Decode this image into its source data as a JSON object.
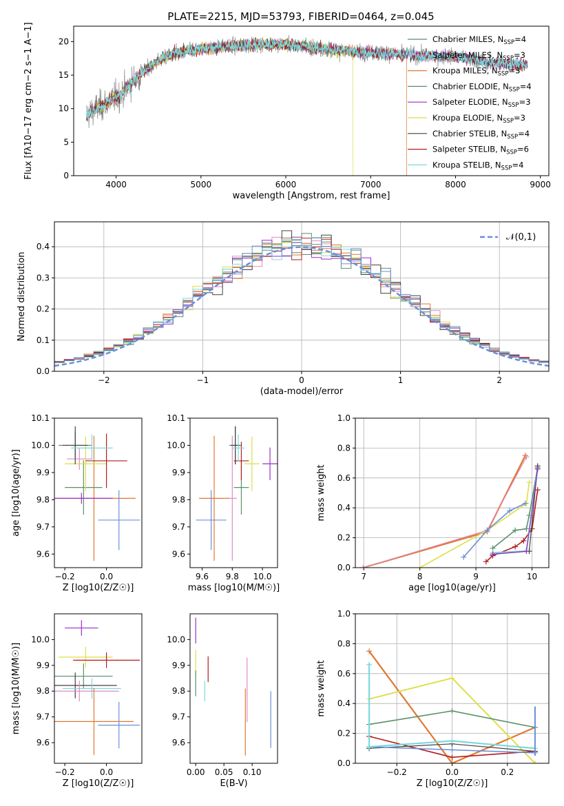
{
  "colors": {
    "Chabrier MILES": "#5a8a6a",
    "Salpeter MILES": "#e08bbf",
    "Kroupa MILES": "#e0782f",
    "Chabrier ELODIE": "#5b8f6b",
    "Salpeter ELODIE": "#9a2fc4",
    "Kroupa ELODIE": "#dede4a",
    "Chabrier STELIB": "#404040",
    "Salpeter STELIB": "#b31b1b",
    "Kroupa STELIB": "#7ed8dc",
    "gaussian": "#6a8fd8",
    "blue": "#6a8fd8"
  },
  "chart_data": [
    {
      "id": "spectrum",
      "type": "line",
      "title": "PLATE=2215, MJD=53793, FIBERID=0464, z=0.045",
      "xlabel": "wavelength [Angstrom, rest frame]",
      "ylabel": "Flux [fλ10−17 erg cm−2 s−1 A−1]",
      "xlim": [
        3500,
        9100
      ],
      "ylim": [
        0,
        22.3
      ],
      "xticks": [
        4000,
        5000,
        6000,
        7000,
        8000,
        9000
      ],
      "yticks": [
        0,
        5,
        10,
        15,
        20
      ],
      "legend": "top-right",
      "legend_entries": [
        {
          "label": "Chabrier MILES, N",
          "sub": "SSP",
          "val": "=4"
        },
        {
          "label": "Salpeter MILES, N",
          "sub": "SSP",
          "val": "=3"
        },
        {
          "label": "Kroupa MILES, N",
          "sub": "SSP",
          "val": "=3"
        },
        {
          "label": "Chabrier ELODIE, N",
          "sub": "SSP",
          "val": "=4"
        },
        {
          "label": "Salpeter ELODIE, N",
          "sub": "SSP",
          "val": "=3"
        },
        {
          "label": "Kroupa ELODIE, N",
          "sub": "SSP",
          "val": "=3"
        },
        {
          "label": "Chabrier STELIB, N",
          "sub": "SSP",
          "val": "=4"
        },
        {
          "label": "Salpeter STELIB, N",
          "sub": "SSP",
          "val": "=6"
        },
        {
          "label": "Kroupa STELIB, N",
          "sub": "SSP",
          "val": "=4"
        }
      ],
      "continuum": [
        [
          3650,
          9
        ],
        [
          3750,
          10
        ],
        [
          3850,
          10.5
        ],
        [
          3950,
          11.5
        ],
        [
          4050,
          12
        ],
        [
          4150,
          13.5
        ],
        [
          4300,
          15.2
        ],
        [
          4500,
          17.2
        ],
        [
          4700,
          18.3
        ],
        [
          5000,
          18.9
        ],
        [
          5300,
          19.3
        ],
        [
          5600,
          19.5
        ],
        [
          6000,
          19.6
        ],
        [
          6400,
          19.0
        ],
        [
          6800,
          18.5
        ],
        [
          7200,
          18.2
        ],
        [
          7600,
          17.9
        ],
        [
          8000,
          17.8
        ],
        [
          8400,
          16.9
        ],
        [
          8850,
          16.5
        ]
      ],
      "drops": [
        {
          "x": 6790,
          "series": "Kroupa ELODIE"
        },
        {
          "x": 7425,
          "series": "Kroupa MILES"
        }
      ]
    },
    {
      "id": "residuals",
      "type": "histogram",
      "xlabel": "(data-model)/error",
      "ylabel": "Normed distribution",
      "xlim": [
        -2.5,
        2.5
      ],
      "ylim": [
        0,
        0.48
      ],
      "xticks": [
        -2,
        -1,
        0,
        1,
        2
      ],
      "yticks": [
        0.0,
        0.1,
        0.2,
        0.3,
        0.4
      ],
      "legend_entry": "𝒩(0,1)",
      "bin_width": 0.1,
      "grid": true
    },
    {
      "id": "age_vs_Z",
      "type": "errorbar",
      "xlabel": "Z [log10(Z/Z☉)]",
      "ylabel": "age  [log10(age/yr)]",
      "xlim": [
        -0.25,
        0.17
      ],
      "ylim": [
        9.55,
        10.1
      ],
      "xticks": [
        -0.2,
        0.0
      ],
      "yticks": [
        9.6,
        9.7,
        9.8,
        9.9,
        10.0,
        10.1
      ],
      "points": [
        {
          "series": "Chabrier MILES",
          "x": -0.15,
          "y": 10.0,
          "xerr": 0.08,
          "yerr": 0.05
        },
        {
          "series": "Salpeter MILES",
          "x": -0.13,
          "y": 9.95,
          "xerr": 0.06,
          "yerr": 0.04
        },
        {
          "series": "Kroupa MILES",
          "x": -0.06,
          "y": 9.805,
          "xerr": 0.2,
          "yerr": 0.23
        },
        {
          "series": "Chabrier ELODIE",
          "x": -0.11,
          "y": 9.845,
          "xerr": 0.09,
          "yerr": 0.1
        },
        {
          "series": "Salpeter ELODIE",
          "x": -0.12,
          "y": 9.805,
          "xerr": 0.15,
          "yerr": 0.02
        },
        {
          "series": "Kroupa ELODIE",
          "x": -0.1,
          "y": 9.932,
          "xerr": 0.1,
          "yerr": 0.1
        },
        {
          "series": "Chabrier STELIB",
          "x": -0.15,
          "y": 10.0,
          "xerr": 0.06,
          "yerr": 0.07
        },
        {
          "series": "Salpeter STELIB",
          "x": 0.0,
          "y": 9.943,
          "xerr": 0.1,
          "yerr": 0.1
        },
        {
          "series": "Kroupa STELIB",
          "x": -0.07,
          "y": 9.99,
          "xerr": 0.1,
          "yerr": 0.05
        },
        {
          "series": "blue",
          "x": 0.06,
          "y": 9.725,
          "xerr": 0.1,
          "yerr": 0.11
        }
      ]
    },
    {
      "id": "age_vs_mass",
      "type": "errorbar",
      "xlabel": "mass [log10(M/M☉)]",
      "ylabel": "",
      "xlim": [
        9.52,
        10.1
      ],
      "ylim": [
        9.55,
        10.1
      ],
      "xticks": [
        9.6,
        9.8,
        10.0
      ],
      "yticks": [
        9.6,
        9.7,
        9.8,
        9.9,
        10.0,
        10.1
      ],
      "points": [
        {
          "series": "Chabrier MILES",
          "x": 9.82,
          "y": 10.0,
          "xerr": 0.04,
          "yerr": 0.07
        },
        {
          "series": "Salpeter MILES",
          "x": 9.8,
          "y": 9.805,
          "xerr": 0.03,
          "yerr": 0.23
        },
        {
          "series": "Kroupa MILES",
          "x": 9.68,
          "y": 9.805,
          "xerr": 0.1,
          "yerr": 0.23
        },
        {
          "series": "Chabrier ELODIE",
          "x": 9.86,
          "y": 9.845,
          "xerr": 0.05,
          "yerr": 0.1
        },
        {
          "series": "Salpeter ELODIE",
          "x": 10.05,
          "y": 9.932,
          "xerr": 0.05,
          "yerr": 0.06
        },
        {
          "series": "Kroupa ELODIE",
          "x": 9.93,
          "y": 9.932,
          "xerr": 0.05,
          "yerr": 0.1
        },
        {
          "series": "Chabrier STELIB",
          "x": 9.82,
          "y": 10.0,
          "xerr": 0.03,
          "yerr": 0.07
        },
        {
          "series": "Salpeter STELIB",
          "x": 9.86,
          "y": 9.943,
          "xerr": 0.05,
          "yerr": 0.07
        },
        {
          "series": "Kroupa STELIB",
          "x": 9.84,
          "y": 9.99,
          "xerr": 0.04,
          "yerr": 0.05
        },
        {
          "series": "blue",
          "x": 9.66,
          "y": 9.725,
          "xerr": 0.1,
          "yerr": 0.11
        }
      ]
    },
    {
      "id": "weight_vs_age",
      "type": "line",
      "xlabel": "age  [log10(age/yr)]",
      "ylabel": "mass weight",
      "xlim": [
        6.85,
        10.3
      ],
      "ylim": [
        0,
        1.0
      ],
      "xticks": [
        7,
        8,
        9,
        10
      ],
      "yticks": [
        0.0,
        0.2,
        0.4,
        0.6,
        0.8,
        1.0
      ],
      "grid": true,
      "series": [
        {
          "name": "Kroupa MILES",
          "width": 2.2,
          "points": [
            [
              6.99,
              0.0
            ],
            [
              9.2,
              0.24
            ],
            [
              9.88,
              0.75
            ]
          ]
        },
        {
          "name": "Salpeter MILES",
          "width": 1.2,
          "points": [
            [
              6.99,
              0.0
            ],
            [
              9.2,
              0.25
            ],
            [
              9.9,
              0.74
            ]
          ]
        },
        {
          "name": "Kroupa ELODIE",
          "width": 1.6,
          "points": [
            [
              8.0,
              0.0
            ],
            [
              9.2,
              0.25
            ],
            [
              9.9,
              0.43
            ],
            [
              9.95,
              0.57
            ]
          ]
        },
        {
          "name": "blue",
          "width": 1.6,
          "points": [
            [
              8.78,
              0.07
            ],
            [
              9.2,
              0.25
            ],
            [
              9.6,
              0.38
            ],
            [
              9.88,
              0.43
            ]
          ]
        },
        {
          "name": "Chabrier ELODIE",
          "width": 1.6,
          "points": [
            [
              9.3,
              0.13
            ],
            [
              9.7,
              0.25
            ],
            [
              9.9,
              0.26
            ],
            [
              9.95,
              0.35
            ],
            [
              10.1,
              0.67
            ]
          ]
        },
        {
          "name": "Salpeter STELIB",
          "width": 1.6,
          "points": [
            [
              9.18,
              0.04
            ],
            [
              9.3,
              0.08
            ],
            [
              9.7,
              0.14
            ],
            [
              9.85,
              0.18
            ],
            [
              10.0,
              0.26
            ],
            [
              10.1,
              0.52
            ]
          ]
        },
        {
          "name": "Kroupa STELIB",
          "width": 2.2,
          "points": [
            [
              9.3,
              0.1
            ],
            [
              9.9,
              0.11
            ],
            [
              10.1,
              0.66
            ]
          ]
        },
        {
          "name": "Chabrier STELIB",
          "width": 1.2,
          "points": [
            [
              9.3,
              0.09
            ],
            [
              9.95,
              0.11
            ],
            [
              10.1,
              0.68
            ]
          ]
        },
        {
          "name": "Salpeter ELODIE",
          "width": 1.2,
          "points": [
            [
              9.3,
              0.09
            ],
            [
              9.9,
              0.11
            ],
            [
              10.1,
              0.66
            ]
          ]
        }
      ]
    },
    {
      "id": "mass_vs_Z",
      "type": "errorbar",
      "xlabel": "Z [log10(Z/Z☉)]",
      "ylabel": "mass [log10(M/M☉)]",
      "xlim": [
        -0.25,
        0.17
      ],
      "ylim": [
        9.52,
        10.1
      ],
      "xticks": [
        -0.2,
        0.0
      ],
      "yticks": [
        9.6,
        9.7,
        9.8,
        9.9,
        10.0
      ],
      "points": [
        {
          "series": "Salpeter ELODIE",
          "x": -0.12,
          "y": 10.045,
          "xerr": 0.08,
          "yerr": 0.03
        },
        {
          "series": "Kroupa ELODIE",
          "x": -0.1,
          "y": 9.932,
          "xerr": 0.13,
          "yerr": 0.04
        },
        {
          "series": "Salpeter STELIB",
          "x": 0.0,
          "y": 9.92,
          "xerr": 0.16,
          "yerr": 0.03
        },
        {
          "series": "Chabrier ELODIE",
          "x": -0.11,
          "y": 9.858,
          "xerr": 0.14,
          "yerr": 0.05
        },
        {
          "series": "Chabrier STELIB",
          "x": -0.15,
          "y": 9.822,
          "xerr": 0.2,
          "yerr": 0.05
        },
        {
          "series": "Kroupa STELIB",
          "x": -0.07,
          "y": 9.81,
          "xerr": 0.14,
          "yerr": 0.04
        },
        {
          "series": "Salpeter MILES",
          "x": -0.13,
          "y": 9.8,
          "xerr": 0.19,
          "yerr": 0.04
        },
        {
          "series": "Kroupa MILES",
          "x": -0.06,
          "y": 9.682,
          "xerr": 0.19,
          "yerr": 0.13
        },
        {
          "series": "blue",
          "x": 0.06,
          "y": 9.668,
          "xerr": 0.1,
          "yerr": 0.09
        }
      ]
    },
    {
      "id": "mass_vs_ebv",
      "type": "errorbar",
      "xlabel": "E(B-V)",
      "ylabel": "",
      "xlim": [
        -0.01,
        0.145
      ],
      "ylim": [
        9.52,
        10.1
      ],
      "xticks": [
        0.0,
        0.05,
        0.1
      ],
      "xticklabels": [
        "0.00",
        "0.05",
        "0.10"
      ],
      "yticks": [
        9.6,
        9.7,
        9.8,
        9.9,
        10.0
      ],
      "points": [
        {
          "series": "Salpeter ELODIE",
          "x": 0.0,
          "y": 10.035,
          "xerr": 0,
          "yerr": 0.05
        },
        {
          "series": "Kroupa ELODIE",
          "x": 0.0,
          "y": 9.91,
          "xerr": 0,
          "yerr": 0.05
        },
        {
          "series": "Chabrier ELODIE",
          "x": 0.0,
          "y": 9.83,
          "xerr": 0,
          "yerr": 0.05
        },
        {
          "series": "Salpeter STELIB",
          "x": 0.022,
          "y": 9.885,
          "xerr": 0,
          "yerr": 0.05
        },
        {
          "series": "Kroupa STELIB",
          "x": 0.016,
          "y": 9.8,
          "xerr": 0,
          "yerr": 0.04
        },
        {
          "series": "Salpeter MILES",
          "x": 0.091,
          "y": 9.805,
          "xerr": 0,
          "yerr": 0.125
        },
        {
          "series": "Kroupa MILES",
          "x": 0.088,
          "y": 9.68,
          "xerr": 0,
          "yerr": 0.13
        },
        {
          "series": "blue",
          "x": 0.133,
          "y": 9.69,
          "xerr": 0,
          "yerr": 0.11
        }
      ]
    },
    {
      "id": "weight_vs_Z",
      "type": "line",
      "xlabel": "Z [log10(Z/Z☉)]",
      "ylabel": "mass weight",
      "xlim": [
        -0.35,
        0.35
      ],
      "ylim": [
        0,
        1.0
      ],
      "xticks": [
        -0.2,
        0.0,
        0.2
      ],
      "yticks": [
        0.0,
        0.2,
        0.4,
        0.6,
        0.8,
        1.0
      ],
      "grid": true,
      "series": [
        {
          "name": "Kroupa MILES",
          "width": 2.2,
          "points": [
            [
              -0.3,
              0.75
            ],
            [
              0.0,
              0.0
            ],
            [
              0.3,
              0.24
            ]
          ]
        },
        {
          "name": "Kroupa ELODIE",
          "width": 2.0,
          "points": [
            [
              -0.3,
              0.43
            ],
            [
              0.0,
              0.57
            ],
            [
              0.3,
              0.0
            ]
          ]
        },
        {
          "name": "Chabrier ELODIE",
          "width": 1.6,
          "points": [
            [
              -0.3,
              0.26
            ],
            [
              0.0,
              0.35
            ],
            [
              0.3,
              0.24
            ]
          ]
        },
        {
          "name": "Salpeter STELIB",
          "width": 1.6,
          "points": [
            [
              -0.3,
              0.18
            ],
            [
              0.0,
              0.04
            ],
            [
              0.3,
              0.08
            ]
          ]
        },
        {
          "name": "Chabrier STELIB",
          "width": 1.2,
          "points": [
            [
              -0.3,
              0.1
            ],
            [
              0.0,
              0.13
            ],
            [
              0.3,
              0.08
            ]
          ]
        },
        {
          "name": "blue",
          "width": 1.6,
          "points": [
            [
              -0.3,
              0.11
            ],
            [
              0.0,
              0.09
            ],
            [
              0.3,
              0.07
            ]
          ]
        },
        {
          "name": "Kroupa STELIB",
          "width": 2.2,
          "points": [
            [
              -0.3,
              0.66
            ],
            [
              -0.3,
              0.11
            ],
            [
              0.0,
              0.15
            ],
            [
              0.3,
              0.1
            ]
          ]
        }
      ],
      "vbars": [
        {
          "series": "Kroupa STELIB",
          "x": -0.3,
          "y0": 0.1,
          "y1": 0.67
        },
        {
          "series": "blue",
          "x": 0.3,
          "y0": 0.05,
          "y1": 0.38
        }
      ]
    }
  ]
}
